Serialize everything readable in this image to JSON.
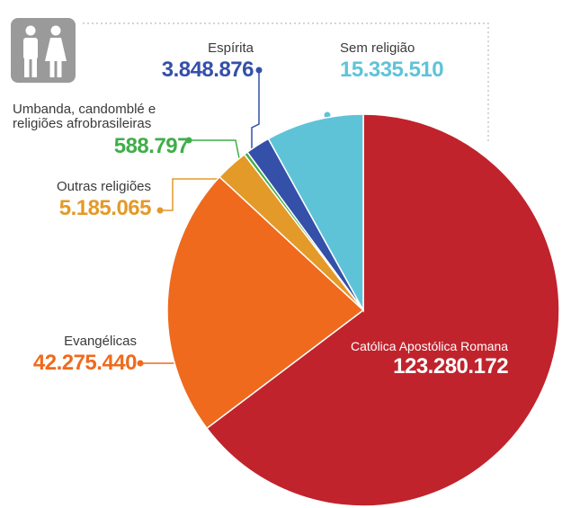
{
  "chart_data": {
    "type": "pie",
    "slices": [
      {
        "label": "Católica Apostólica Romana",
        "value": 123280172,
        "display": "123.280.172",
        "color": "#c0232c"
      },
      {
        "label": "Evangélicas",
        "value": 42275440,
        "display": "42.275.440",
        "color": "#ef6a1d"
      },
      {
        "label": "Outras religiões",
        "value": 5185065,
        "display": "5.185.065",
        "color": "#e49a28"
      },
      {
        "label": "Umbanda, candomblé e religiões afrobrasileiras",
        "label_lines": [
          "Umbanda, candomblé e",
          "religiões afrobrasileiras"
        ],
        "value": 588797,
        "display": "588.797",
        "color": "#3fae49"
      },
      {
        "label": "Espírita",
        "value": 3848876,
        "display": "3.848.876",
        "color": "#3450a8"
      },
      {
        "label": "Sem religião",
        "value": 15335510,
        "display": "15.335.510",
        "color": "#5fc3d8"
      }
    ],
    "start_angle": "12 o'clock",
    "direction": "clockwise"
  },
  "icons": [
    "restroom-icon"
  ],
  "colors": {
    "border": "#bbbbbb",
    "pie_outline": "#ffffff",
    "icon_bg": "#9a9a9a"
  }
}
